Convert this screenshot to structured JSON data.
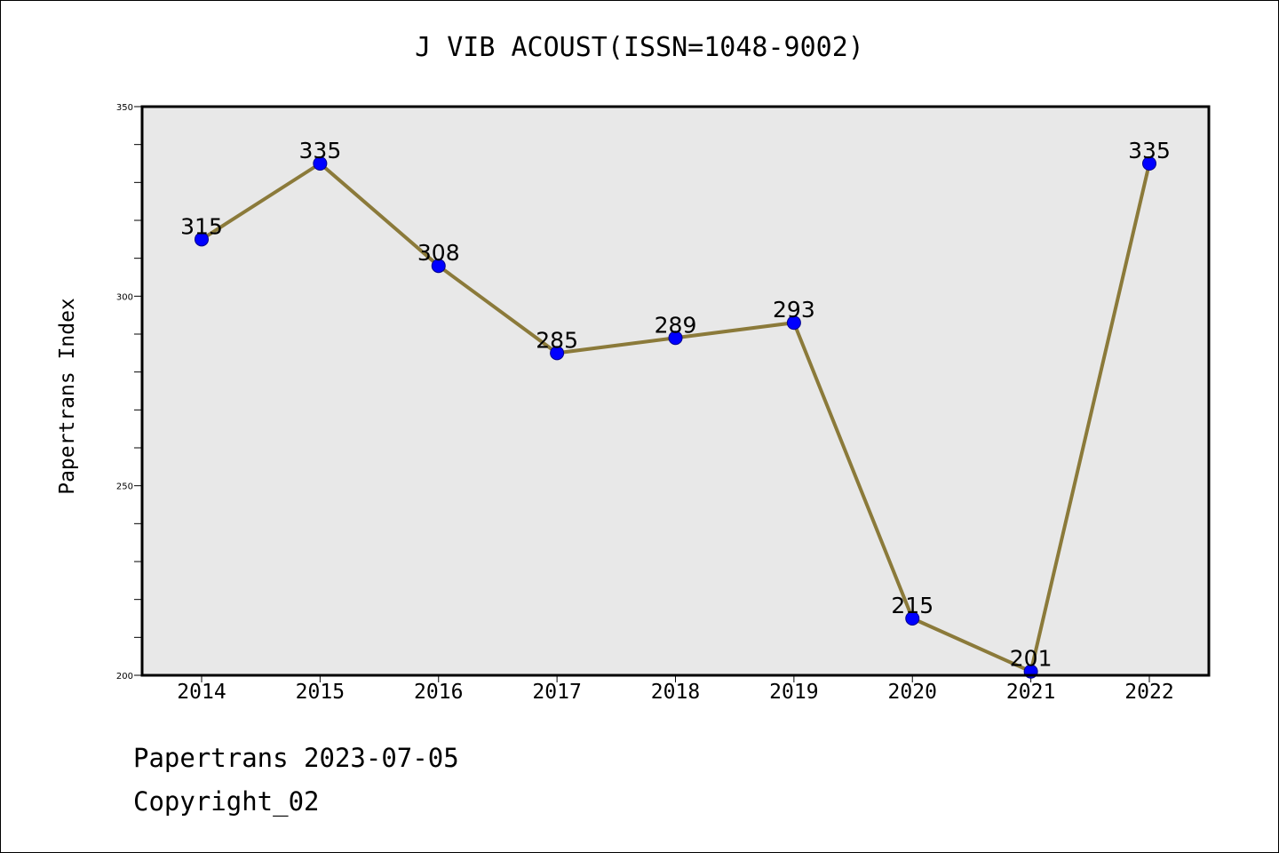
{
  "chart_data": {
    "type": "line",
    "title": "J VIB ACOUST(ISSN=1048-9002)",
    "xlabel": "",
    "ylabel": "Papertrans Index",
    "categories": [
      "2014",
      "2015",
      "2016",
      "2017",
      "2018",
      "2019",
      "2020",
      "2021",
      "2022"
    ],
    "values": [
      315,
      335,
      308,
      285,
      289,
      293,
      215,
      201,
      335
    ],
    "ylim": [
      200,
      350
    ],
    "yticks": [
      200,
      250,
      300,
      350
    ],
    "grid": false,
    "line_color": "#8b7a3a",
    "marker_color": "#0000ff",
    "plot_background": "#e8e8e8"
  },
  "footer": {
    "line1": "Papertrans 2023-07-05",
    "line2": "Copyright_02"
  }
}
